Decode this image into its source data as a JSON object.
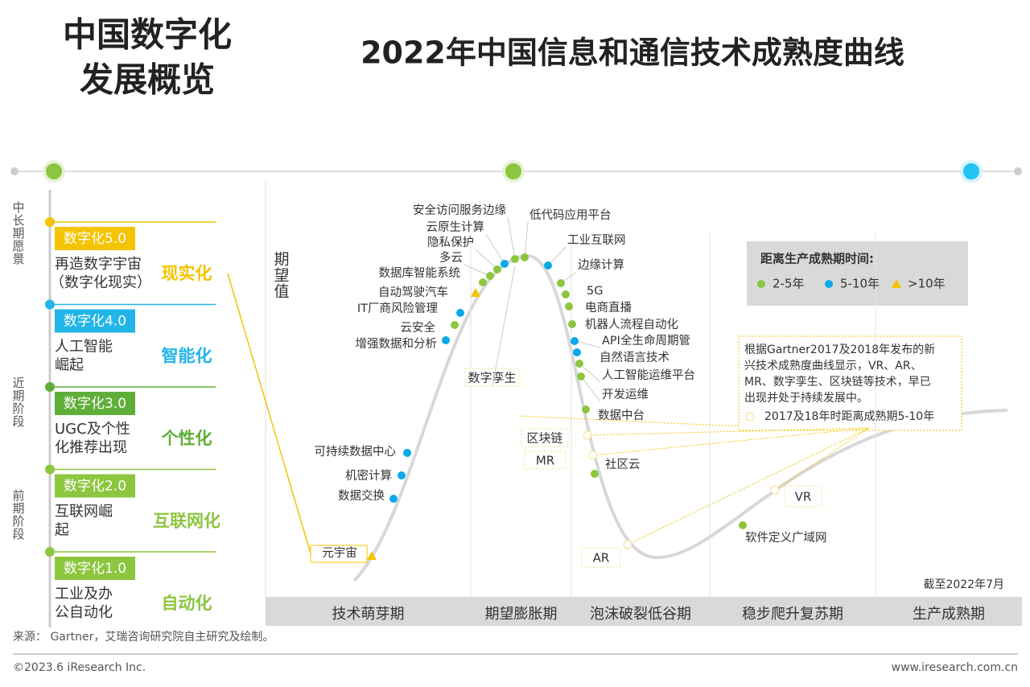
{
  "header": {
    "section_title": [
      "中国数字化",
      "发展概览"
    ],
    "title": "2022年中国信息和通信技术成熟度曲线"
  },
  "left_panel": {
    "axis_labels": [
      "中长期愿景",
      "近期阶段",
      "前期阶段"
    ],
    "stages": [
      {
        "tag": "数字化5.0",
        "desc": [
          "再造数字宇宙",
          "（数字化现实）"
        ],
        "name": "现实化",
        "color": "#f5c400"
      },
      {
        "tag": "数字化4.0",
        "desc": [
          "人工智能",
          "崛起"
        ],
        "name": "智能化",
        "color": "#22b5e8"
      },
      {
        "tag": "数字化3.0",
        "desc": [
          "UGC及个性",
          "化推荐出现"
        ],
        "name": "个性化",
        "color": "#5fae3a"
      },
      {
        "tag": "数字化2.0",
        "desc": [
          "互联网崛",
          "起"
        ],
        "name": "互联网化",
        "color": "#8cc63f"
      },
      {
        "tag": "数字化1.0",
        "desc": [
          "工业及办",
          "公自动化"
        ],
        "name": "自动化",
        "color": "#8cc63f"
      }
    ]
  },
  "chart": {
    "y_label": "期望值",
    "phases": [
      "技术萌芽期",
      "期望膨胀期",
      "泡沫破裂低谷期",
      "稳步爬升复苏期",
      "生产成熟期"
    ],
    "legend": {
      "title": "距离生产成熟期时间:",
      "items": [
        {
          "label": "2-5年",
          "color": "#8cc63f",
          "shape": "circle"
        },
        {
          "label": "5-10年",
          "color": "#0aa8e8",
          "shape": "circle"
        },
        {
          "label": ">10年",
          "color": "#f5c400",
          "shape": "triangle"
        }
      ]
    },
    "technologies": [
      {
        "label": "元宇宙",
        "group": 2
      },
      {
        "label": "数据交换",
        "group": 1
      },
      {
        "label": "机密计算",
        "group": 1
      },
      {
        "label": "可持续数据中心",
        "group": 1
      },
      {
        "label": "增强数据和分析",
        "group": 1
      },
      {
        "label": "云安全",
        "group": 0
      },
      {
        "label": "IT厂商风险管理",
        "group": 1
      },
      {
        "label": "自动驾驶汽车",
        "group": 2
      },
      {
        "label": "数据库智能系统",
        "group": 0
      },
      {
        "label": "多云",
        "group": 0
      },
      {
        "label": "隐私保护",
        "group": 0
      },
      {
        "label": "云原生计算",
        "group": 1
      },
      {
        "label": "安全访问服务边缘",
        "group": 0
      },
      {
        "label": "低代码应用平台",
        "group": 0
      },
      {
        "label": "工业互联网",
        "group": 1
      },
      {
        "label": "边缘计算",
        "group": 0
      },
      {
        "label": "5G",
        "group": 0
      },
      {
        "label": "电商直播",
        "group": 0
      },
      {
        "label": "机器人流程自动化",
        "group": 0
      },
      {
        "label": "API全生命周期管",
        "group": 1
      },
      {
        "label": "自然语言技术",
        "group": 1
      },
      {
        "label": "人工智能运维平台",
        "group": 0
      },
      {
        "label": "开发运维",
        "group": 0
      },
      {
        "label": "数据中台",
        "group": 0
      },
      {
        "label": "社区云",
        "group": 0
      },
      {
        "label": "软件定义广域网",
        "group": 0
      }
    ],
    "annotation": {
      "text": [
        "根据Gartner2017及2018年发布的新",
        "兴技术成熟度曲线显示，VR、AR、",
        "MR、数字孪生、区块链等技术，早已",
        "出现并处于持续发展中。"
      ],
      "legend": "2017及18年时距离成熟期5-10年",
      "items": [
        "数字孪生",
        "区块链",
        "MR",
        "VR",
        "AR"
      ]
    },
    "date_note": "截至2022年7月"
  },
  "footer": {
    "source": "来源：   Gartner，艾瑞咨询研究院自主研究及绘制。",
    "copyright": "©2023.6 iResearch Inc.",
    "url": "www.iresearch.com.cn"
  }
}
